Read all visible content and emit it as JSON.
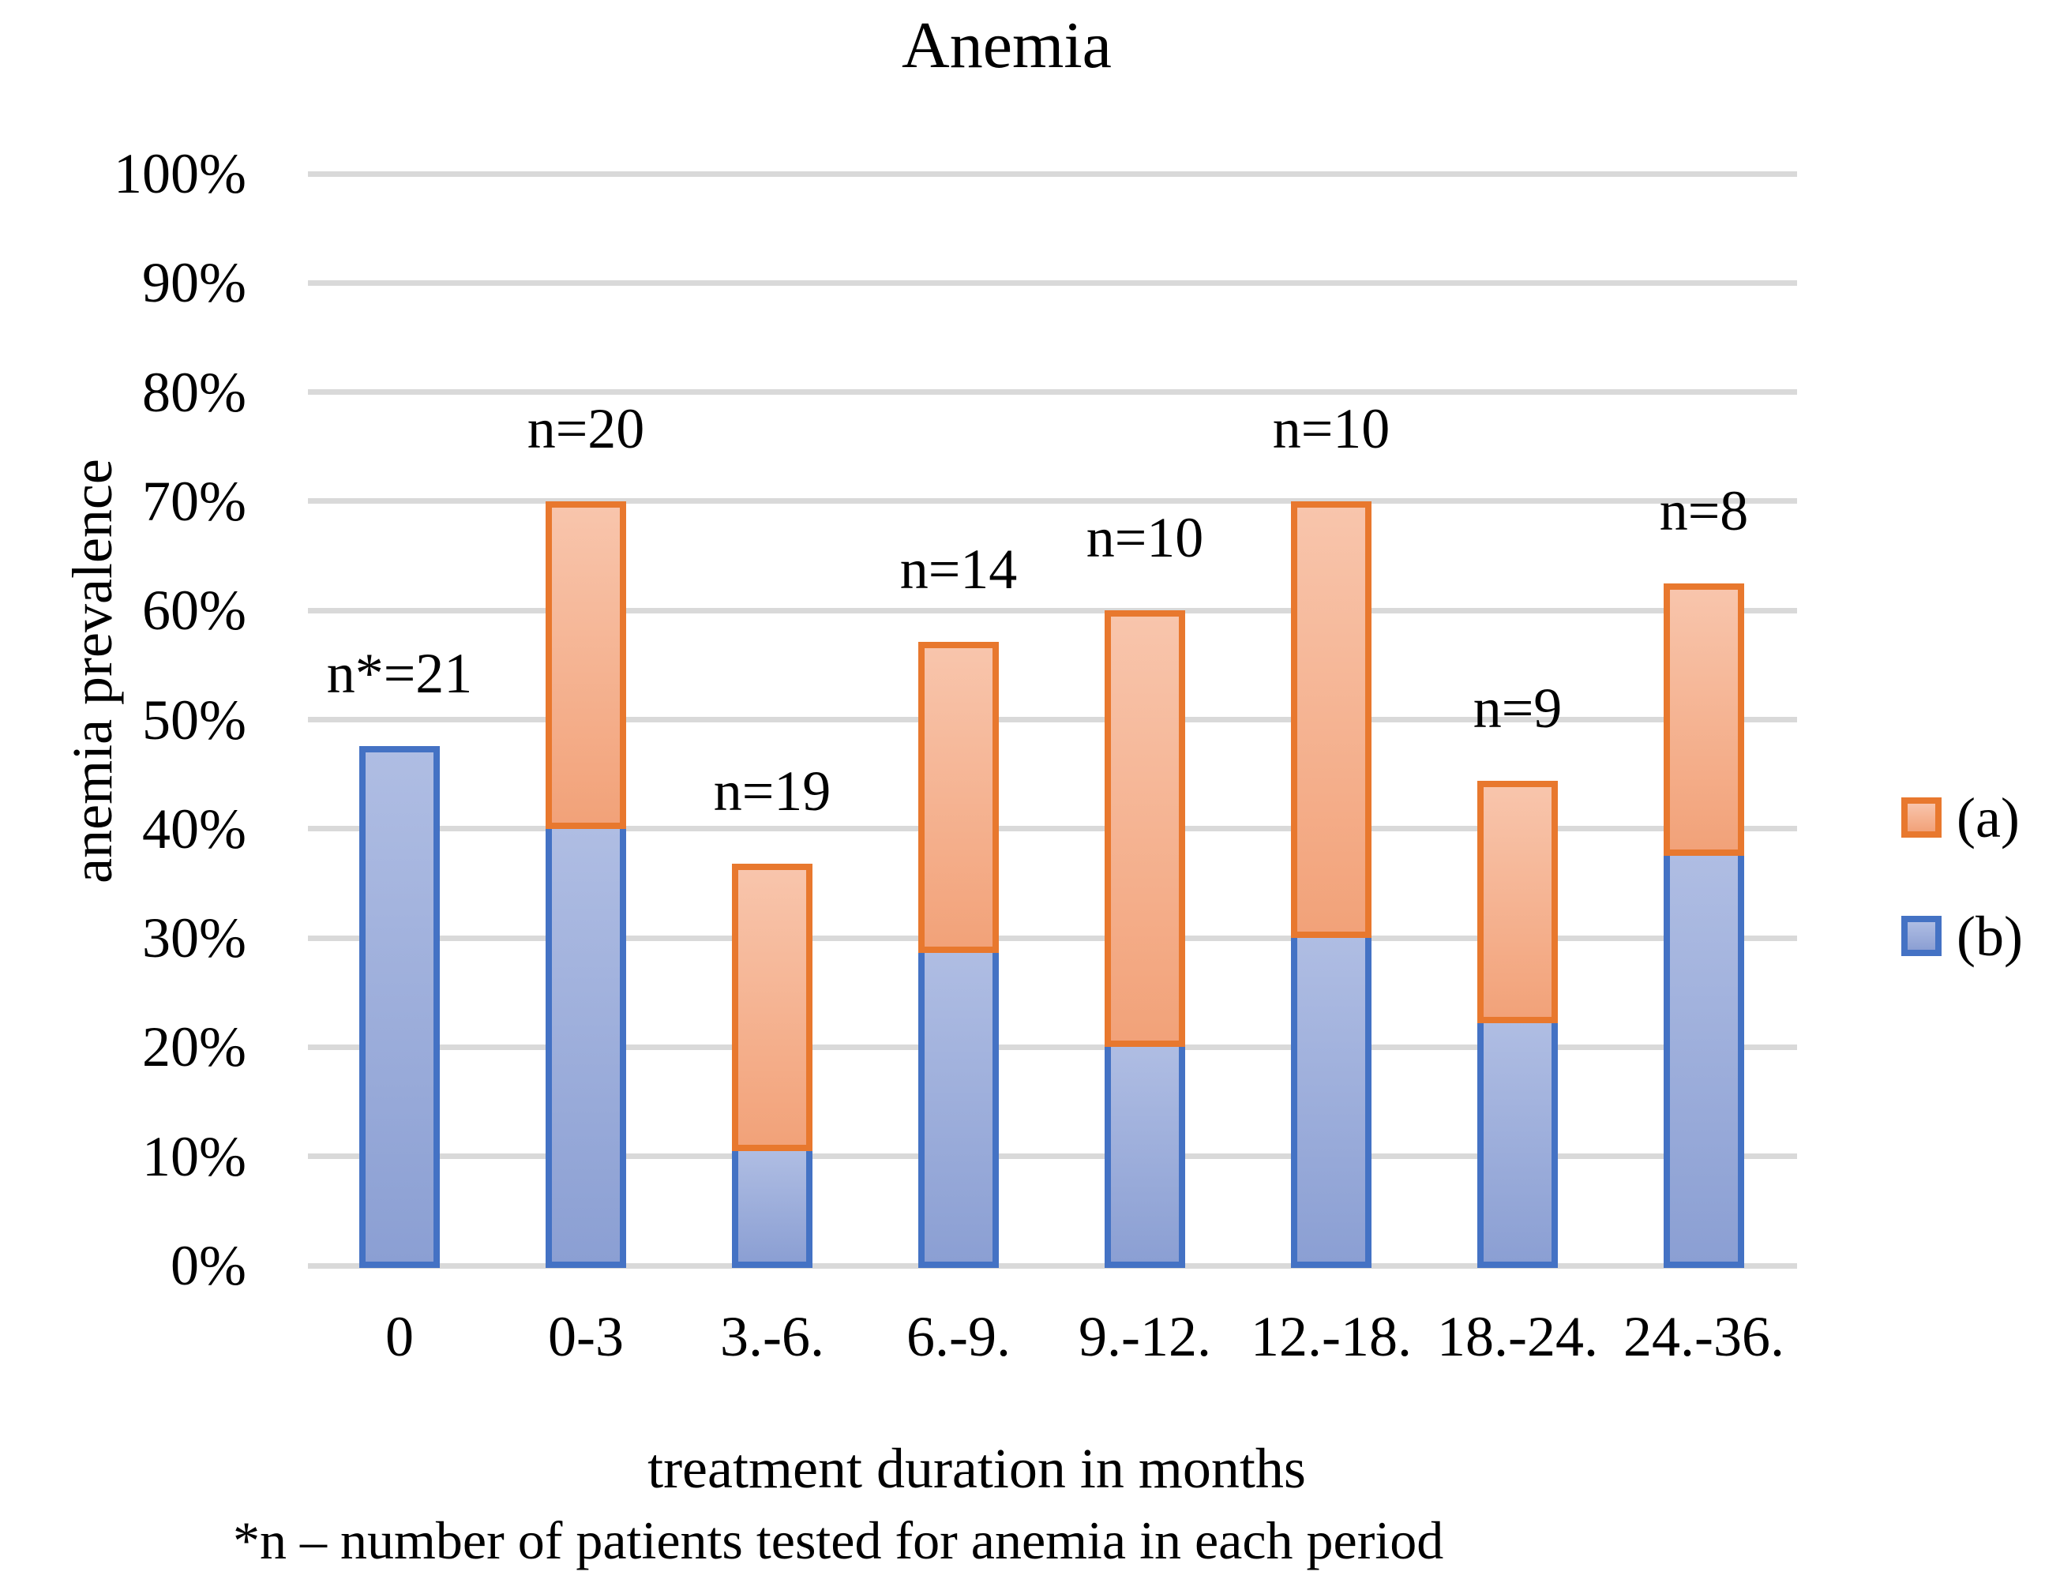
{
  "title": "Anemia",
  "y_axis": {
    "title": "anemia prevalence",
    "ticks": [
      "0%",
      "10%",
      "20%",
      "30%",
      "40%",
      "50%",
      "60%",
      "70%",
      "80%",
      "90%",
      "100%"
    ]
  },
  "x_axis": {
    "title": "treatment duration in months",
    "categories": [
      "0",
      "0-3",
      "3.-6.",
      "6.-9.",
      "9.-12.",
      "12.-18.",
      "18.-24.",
      "24.-36."
    ]
  },
  "footnote": "*n – number of patients tested for anemia in each period",
  "legend": {
    "position": "right",
    "items": [
      {
        "label": "(a)",
        "color_key": "orange"
      },
      {
        "label": "(b)",
        "color_key": "blue"
      }
    ]
  },
  "colors": {
    "orange_border": "#E8782E",
    "orange_fill_top": "#F8C5AC",
    "orange_fill_bottom": "#F2A279",
    "blue_border": "#4472C4",
    "blue_fill_top": "#AFBDE3",
    "blue_fill_bottom": "#8B9FD3",
    "gridline": "#D9D9D9",
    "text": "#000000"
  },
  "chart_data": {
    "type": "bar",
    "stacked": true,
    "title": "Anemia",
    "xlabel": "treatment duration in months",
    "ylabel": "anemia prevalence",
    "ylim": [
      0,
      100
    ],
    "ytick_step_percent": 10,
    "grid": true,
    "legend_position": "right",
    "categories": [
      "0",
      "0-3",
      "3.-6.",
      "6.-9.",
      "9.-12.",
      "12.-18.",
      "18.-24.",
      "24.-36."
    ],
    "series": [
      {
        "name": "(b)",
        "color_key": "blue",
        "values_percent": [
          47.6,
          40.0,
          10.5,
          28.6,
          20.0,
          30.0,
          22.2,
          37.5
        ]
      },
      {
        "name": "(a)",
        "color_key": "orange",
        "values_percent": [
          0.0,
          30.0,
          26.3,
          28.5,
          40.0,
          40.0,
          22.2,
          25.0
        ]
      }
    ],
    "stack_totals_percent": [
      47.6,
      70.0,
      36.8,
      57.1,
      60.0,
      70.0,
      44.4,
      62.5
    ],
    "bar_count_labels": [
      "n*=21",
      "n=20",
      "n=19",
      "n=14",
      "n=10",
      "n=10",
      "n=9",
      "n=8"
    ]
  }
}
